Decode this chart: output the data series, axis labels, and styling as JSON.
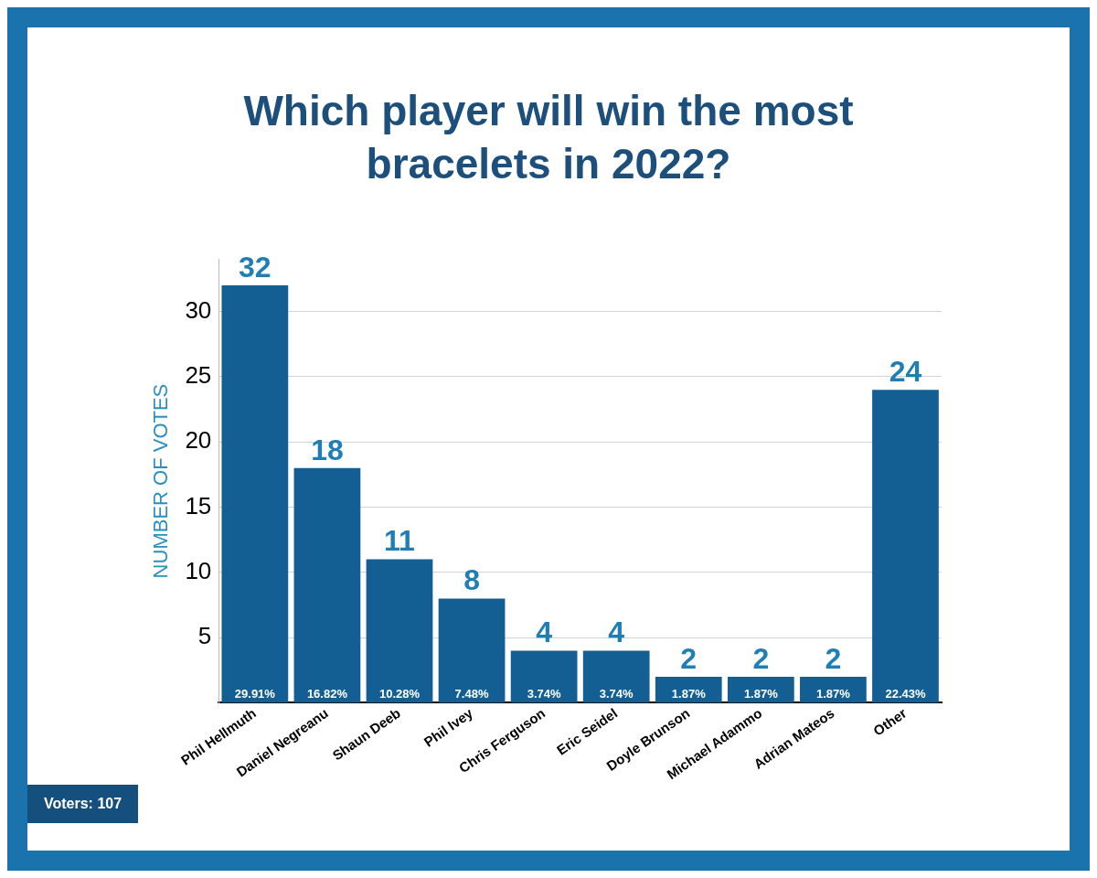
{
  "chart_data": {
    "type": "bar",
    "title": "Which player will win the most bracelets in 2022?",
    "ylabel": "NUMBER OF VOTES",
    "categories": [
      "Phil Hellmuth",
      "Daniel Negreanu",
      "Shaun Deeb",
      "Phil Ivey",
      "Chris Ferguson",
      "Eric Seidel",
      "Doyle Brunson",
      "Michael Adammo",
      "Adrian Mateos",
      "Other"
    ],
    "values": [
      32,
      18,
      11,
      8,
      4,
      4,
      2,
      2,
      2,
      24
    ],
    "value_labels": [
      "32",
      "18",
      "11",
      "8",
      "4",
      "4",
      "2",
      "2",
      "2",
      "24"
    ],
    "color": "#135f94",
    "ylim": [
      0,
      34
    ],
    "yticks": [
      5,
      10,
      15,
      20,
      25,
      30
    ],
    "grid": "y",
    "annotations": [
      {
        "text": "29.91%",
        "x": "Phil Hellmuth",
        "y": 0
      },
      {
        "text": "16.82%",
        "x": "Daniel Negreanu",
        "y": 0
      },
      {
        "text": "10.28%",
        "x": "Shaun Deeb",
        "y": 0
      },
      {
        "text": "7.48%",
        "x": "Phil Ivey",
        "y": 0
      },
      {
        "text": "3.74%",
        "x": "Chris Ferguson",
        "y": 0
      },
      {
        "text": "3.74%",
        "x": "Eric Seidel",
        "y": 0
      },
      {
        "text": "1.87%",
        "x": "Doyle Brunson",
        "y": 0
      },
      {
        "text": "1.87%",
        "x": "Michael Adammo",
        "y": 0
      },
      {
        "text": "1.87%",
        "x": "Adrian Mateos",
        "y": 0
      },
      {
        "text": "22.43%",
        "x": "Other",
        "y": 0
      },
      "Voters: 107"
    ]
  }
}
